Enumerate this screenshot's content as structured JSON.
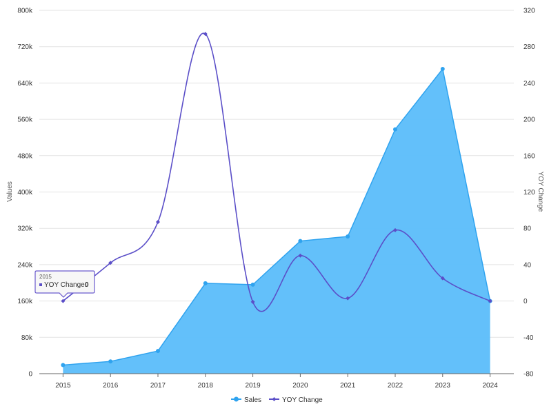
{
  "chart_data": {
    "type": "area",
    "categories": [
      "2015",
      "2016",
      "2017",
      "2018",
      "2019",
      "2020",
      "2021",
      "2022",
      "2023",
      "2024"
    ],
    "series": [
      {
        "name": "Sales",
        "type": "area",
        "axis": "left",
        "color": "#5bbdfa",
        "stroke": "#2fa3ef",
        "values": [
          19000,
          27000,
          50000,
          199000,
          196000,
          292000,
          302000,
          538000,
          671000,
          160000
        ]
      },
      {
        "name": "YOY Change",
        "type": "spline",
        "axis": "right",
        "color": "#5b4fc8",
        "values": [
          0,
          42,
          87,
          294,
          -1,
          50,
          3,
          78,
          25,
          0
        ]
      }
    ],
    "ylabel": "Values",
    "y2label": "YOY Change",
    "ylim": [
      0,
      800000
    ],
    "y2lim": [
      -80,
      320
    ],
    "yticks": [
      "0",
      "80k",
      "160k",
      "240k",
      "320k",
      "400k",
      "480k",
      "560k",
      "640k",
      "720k",
      "800k"
    ],
    "y2ticks": [
      "-80",
      "-40",
      "0",
      "40",
      "80",
      "120",
      "160",
      "200",
      "240",
      "280",
      "320"
    ],
    "grid": true,
    "legend_position": "bottom",
    "tooltip": {
      "title": "2015",
      "label": "YOY Change:",
      "value": "0"
    }
  }
}
